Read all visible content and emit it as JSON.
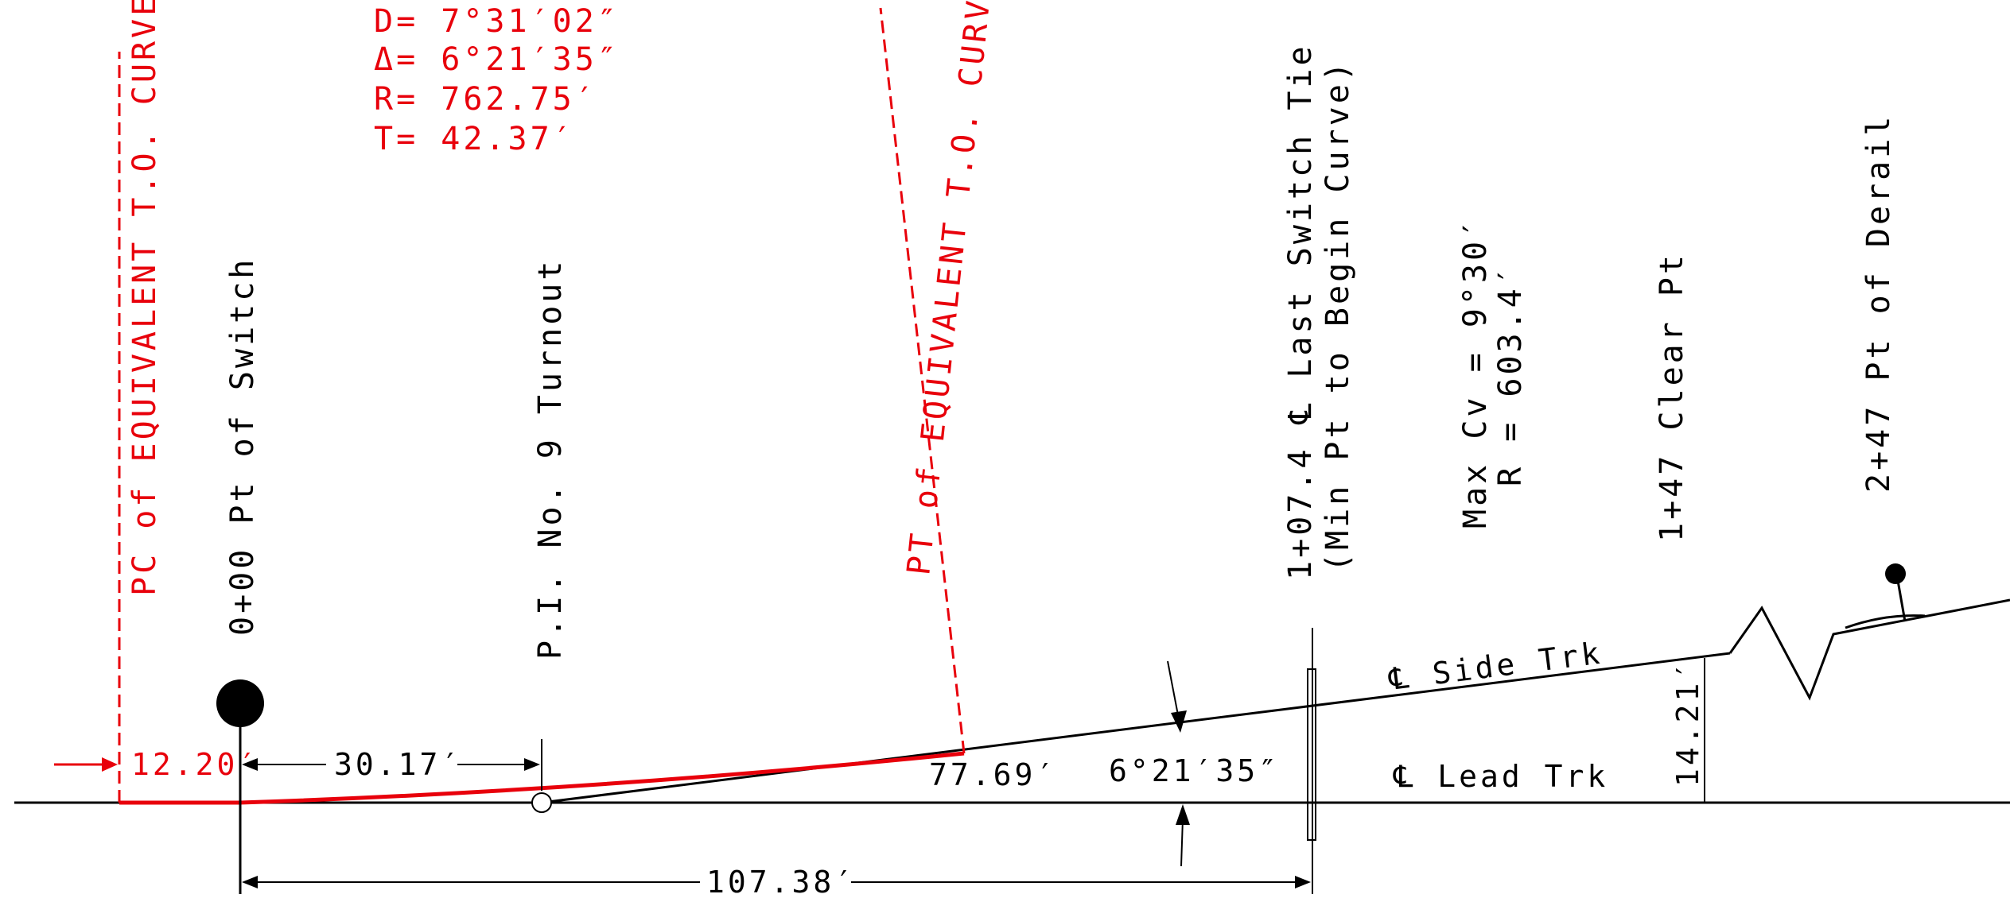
{
  "curve": {
    "degree": "D= 7°31′02″",
    "delta": "Δ= 6°21′35″",
    "radius": "R= 762.75′",
    "tangent": "T= 42.37′"
  },
  "labels": {
    "pc": "PC of EQUIVALENT T.O. CURVE",
    "pt": "PT of EQUIVALENT T.O. CURVE",
    "switch_point": "0+00 Pt of Switch",
    "pi": "P.I. No. 9 Turnout",
    "last_tie_line1": "1+07.4 ℄ Last Switch Tie",
    "last_tie_line2": "(Min Pt to Begin Curve)",
    "max_curve_line1": "Max Cv = 9°30′",
    "max_curve_line2": "R = 603.4′",
    "clear_point": "1+47 Clear Pt",
    "derail": "2+47 Pt of Derail",
    "side_track": "℄ Side Trk",
    "lead_track": "℄ Lead Trk"
  },
  "dimensions": {
    "pc_offset": "12.20′",
    "switch_to_pi": "30.17′",
    "pt_distance": "77.69′",
    "frog_angle": "6°21′35″",
    "switch_to_tie": "107.38′",
    "clear_offset": "14.21′"
  },
  "colors": {
    "line": "#000000",
    "curve": "#e8000b"
  }
}
